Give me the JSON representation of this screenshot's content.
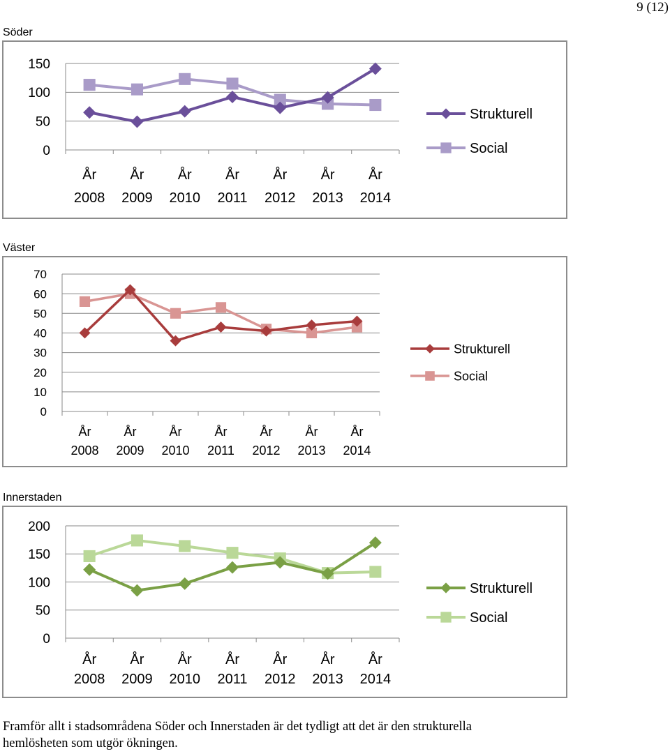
{
  "page_number": "9 (12)",
  "charts": [
    {
      "section": "Söder",
      "chart_data": {
        "type": "line",
        "categories": [
          [
            "År",
            "2008"
          ],
          [
            "År",
            "2009"
          ],
          [
            "År",
            "2010"
          ],
          [
            "År",
            "2011"
          ],
          [
            "År",
            "2012"
          ],
          [
            "År",
            "2013"
          ],
          [
            "År",
            "2014"
          ]
        ],
        "ylim": [
          0,
          150
        ],
        "yticks": [
          0,
          50,
          100,
          150
        ],
        "grid": true,
        "legend": "right",
        "series": [
          {
            "name": "Strukturell",
            "marker": "diamond",
            "color": "#6a4f9a",
            "values": [
              65,
              49,
              67,
              92,
              73,
              91,
              141
            ]
          },
          {
            "name": "Social",
            "marker": "square",
            "color": "#a99bc8",
            "values": [
              113,
              105,
              123,
              115,
              87,
              80,
              78
            ]
          }
        ]
      }
    },
    {
      "section": "Väster",
      "chart_data": {
        "type": "line",
        "categories": [
          [
            "År",
            "2008"
          ],
          [
            "År",
            "2009"
          ],
          [
            "År",
            "2010"
          ],
          [
            "År",
            "2011"
          ],
          [
            "År",
            "2012"
          ],
          [
            "År",
            "2013"
          ],
          [
            "År",
            "2014"
          ]
        ],
        "ylim": [
          0,
          70
        ],
        "yticks": [
          0,
          10,
          20,
          30,
          40,
          50,
          60,
          70
        ],
        "grid": true,
        "legend": "right",
        "series": [
          {
            "name": "Strukturell",
            "marker": "diamond",
            "color": "#a83c3c",
            "values": [
              40,
              62,
              36,
              43,
              41,
              44,
              46
            ]
          },
          {
            "name": "Social",
            "marker": "square",
            "color": "#d99593",
            "values": [
              56,
              60,
              50,
              53,
              42,
              40,
              43
            ]
          }
        ]
      }
    },
    {
      "section": "Innerstaden",
      "chart_data": {
        "type": "line",
        "categories": [
          [
            "År",
            "2008"
          ],
          [
            "År",
            "2009"
          ],
          [
            "År",
            "2010"
          ],
          [
            "År",
            "2011"
          ],
          [
            "År",
            "2012"
          ],
          [
            "År",
            "2013"
          ],
          [
            "År",
            "2014"
          ]
        ],
        "ylim": [
          0,
          200
        ],
        "yticks": [
          0,
          50,
          100,
          150,
          200
        ],
        "grid": true,
        "legend": "right",
        "series": [
          {
            "name": "Strukturell",
            "marker": "diamond",
            "color": "#7aa045",
            "values": [
              122,
              85,
              97,
              126,
              135,
              115,
              170
            ]
          },
          {
            "name": "Social",
            "marker": "square",
            "color": "#bad898",
            "values": [
              146,
              174,
              164,
              152,
              142,
              116,
              118
            ]
          }
        ]
      }
    }
  ],
  "body_text": [
    "Framför allt i stadsområdena Söder och Innerstaden är det tydligt att det är den strukturella",
    "hemlösheten som utgör ökningen."
  ]
}
